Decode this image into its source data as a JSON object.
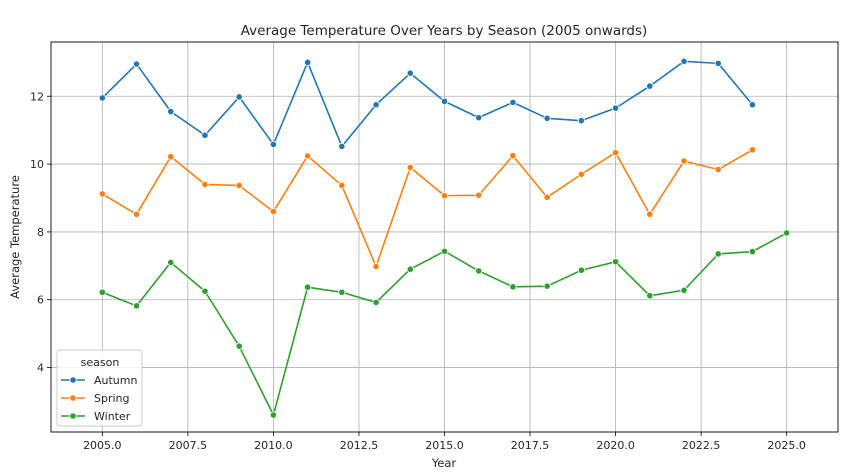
{
  "chart_data": {
    "type": "line",
    "title": "Average Temperature Over Years by Season (2005 onwards)",
    "xlabel": "Year",
    "ylabel": "Average Temperature",
    "xlim": [
      2003.5,
      2026.5
    ],
    "ylim": [
      2.1,
      13.6
    ],
    "x_ticks": [
      2005.0,
      2007.5,
      2010.0,
      2012.5,
      2015.0,
      2017.5,
      2020.0,
      2022.5,
      2025.0
    ],
    "x_tick_labels": [
      "2005.0",
      "2007.5",
      "2010.0",
      "2012.5",
      "2015.0",
      "2017.5",
      "2020.0",
      "2022.5",
      "2025.0"
    ],
    "y_ticks": [
      4,
      6,
      8,
      10,
      12
    ],
    "y_tick_labels": [
      "4",
      "6",
      "8",
      "10",
      "12"
    ],
    "grid": true,
    "legend": {
      "title": "season",
      "position": "lower-left"
    },
    "series": [
      {
        "name": "Autumn",
        "color": "#1f77b4",
        "x": [
          2005,
          2006,
          2007,
          2008,
          2009,
          2010,
          2011,
          2012,
          2013,
          2014,
          2015,
          2016,
          2017,
          2018,
          2019,
          2020,
          2021,
          2022,
          2023,
          2024
        ],
        "y": [
          11.95,
          12.95,
          11.55,
          10.85,
          11.98,
          10.58,
          13.0,
          10.52,
          11.75,
          12.68,
          11.85,
          11.37,
          11.82,
          11.35,
          11.28,
          11.65,
          12.3,
          13.03,
          12.97,
          11.75
        ]
      },
      {
        "name": "Spring",
        "color": "#ff7f0e",
        "x": [
          2005,
          2006,
          2007,
          2008,
          2009,
          2010,
          2011,
          2012,
          2013,
          2014,
          2015,
          2016,
          2017,
          2018,
          2019,
          2020,
          2021,
          2022,
          2023,
          2024
        ],
        "y": [
          9.12,
          8.52,
          10.22,
          9.4,
          9.37,
          8.6,
          10.24,
          9.37,
          6.98,
          9.9,
          9.07,
          9.08,
          10.25,
          9.02,
          9.7,
          10.34,
          8.52,
          10.09,
          9.84,
          10.42
        ]
      },
      {
        "name": "Winter",
        "color": "#2ca02c",
        "x": [
          2005,
          2006,
          2007,
          2008,
          2009,
          2010,
          2011,
          2012,
          2013,
          2014,
          2015,
          2016,
          2017,
          2018,
          2019,
          2020,
          2021,
          2022,
          2023,
          2024,
          2025
        ],
        "y": [
          6.22,
          5.82,
          7.1,
          6.25,
          4.63,
          2.6,
          6.37,
          6.22,
          5.92,
          6.9,
          7.43,
          6.85,
          6.38,
          6.4,
          6.87,
          7.12,
          6.12,
          6.28,
          7.35,
          7.42,
          7.97
        ]
      }
    ]
  }
}
